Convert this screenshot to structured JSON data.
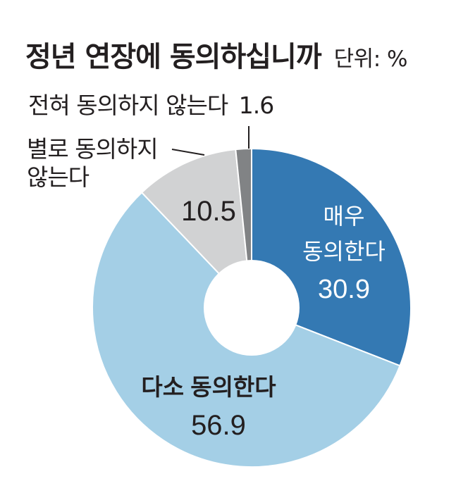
{
  "header": {
    "title": "정년 연장에 동의하십니까",
    "unit": "단위: %"
  },
  "colors": {
    "strongly_agree": "#3479b3",
    "somewhat_agree": "#a4cfe6",
    "not_really_agree": "#d1d2d3",
    "not_at_all_agree": "#818385",
    "leader_line": "#231f20",
    "hole": "#ffffff"
  },
  "chart_data": {
    "type": "pie",
    "title": "정년 연장에 동의하십니까",
    "unit": "%",
    "donut": true,
    "start": "12 o'clock",
    "direction": "clockwise",
    "slices": [
      {
        "label": "매우 동의한다",
        "label_lines": [
          "매우",
          "동의한다"
        ],
        "value": 30.9,
        "value_text": "30.9",
        "color": "#3479b3"
      },
      {
        "label": "다소 동의한다",
        "label_lines": [
          "다소 동의한다"
        ],
        "value": 56.9,
        "value_text": "56.9",
        "color": "#a4cfe6"
      },
      {
        "label": "별로 동의하지 않는다",
        "label_lines": [
          "별로 동의하지",
          "않는다"
        ],
        "value": 10.5,
        "value_text": "10.5",
        "color": "#d1d2d3"
      },
      {
        "label": "전혀 동의하지 않는다",
        "label_lines": [
          "전혀 동의하지 않는다"
        ],
        "value": 1.6,
        "value_text": "1.6",
        "color": "#818385"
      }
    ]
  }
}
